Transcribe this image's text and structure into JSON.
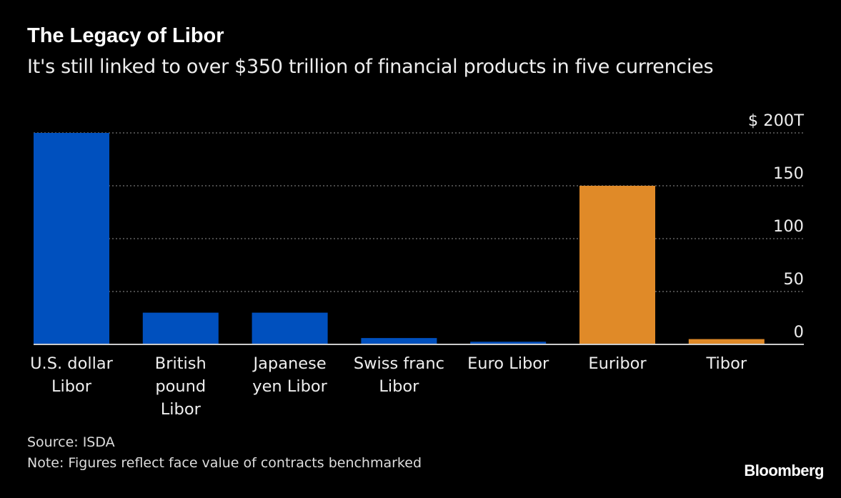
{
  "chart_data": {
    "type": "bar",
    "title": "The Legacy of Libor",
    "subtitle": "It's still linked to over $350 trillion of financial products in five currencies",
    "categories": [
      [
        "U.S. dollar",
        "Libor"
      ],
      [
        "British",
        "pound",
        "Libor"
      ],
      [
        "Japanese",
        "yen Libor"
      ],
      [
        "Swiss franc",
        "Libor"
      ],
      [
        "Euro Libor"
      ],
      [
        "Euribor"
      ],
      [
        "Tibor"
      ]
    ],
    "values": [
      200,
      30,
      30,
      6,
      2.5,
      150,
      5
    ],
    "bar_colors": [
      "#0050be",
      "#0050be",
      "#0050be",
      "#0050be",
      "#0050be",
      "#e08a28",
      "#e08a28"
    ],
    "ylim": [
      0,
      200
    ],
    "yticks": [
      0,
      50,
      100,
      150,
      200
    ],
    "ytick_labels": [
      "0",
      "50",
      "100",
      "150",
      "$ 200T"
    ],
    "grid": true,
    "yaxis_side": "right",
    "source": "Source: ISDA",
    "note": "Note: Figures reflect face value of contracts benchmarked"
  },
  "brand": "Bloomberg"
}
